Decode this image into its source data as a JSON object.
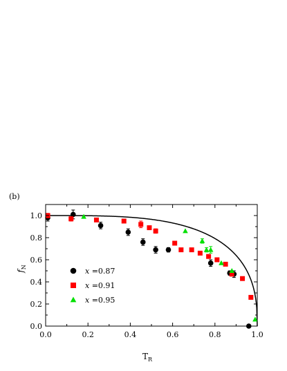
{
  "chart_data": {
    "type": "scatter",
    "panel_label": "(b)",
    "xlabel": "T",
    "xlabel_sub": "R",
    "ylabel": "f",
    "ylabel_sub": "N",
    "xlim": [
      0,
      1
    ],
    "ylim": [
      0,
      1.1
    ],
    "x_ticks": [
      {
        "value": 0,
        "label": "0.0"
      },
      {
        "value": 0.2,
        "label": "0.2"
      },
      {
        "value": 0.4,
        "label": "0.4"
      },
      {
        "value": 0.6,
        "label": "0.6"
      },
      {
        "value": 0.8,
        "label": "0.8"
      },
      {
        "value": 1.0,
        "label": "1.0"
      }
    ],
    "y_ticks": [
      {
        "value": 0,
        "label": "0.0"
      },
      {
        "value": 0.2,
        "label": "0.2"
      },
      {
        "value": 0.4,
        "label": "0.4"
      },
      {
        "value": 0.6,
        "label": "0.6"
      },
      {
        "value": 0.8,
        "label": "0.8"
      },
      {
        "value": 1.0,
        "label": "1.0"
      }
    ],
    "grid": false,
    "legend_position": "lower-left",
    "series": [
      {
        "name": "x =0.87",
        "legend_var": "x",
        "legend_value": " =0.87",
        "marker": "circle",
        "color": "#000000",
        "points": [
          {
            "x": 0.01,
            "y": 0.98,
            "err": 0.03
          },
          {
            "x": 0.13,
            "y": 1.01,
            "err": 0.04
          },
          {
            "x": 0.26,
            "y": 0.91,
            "err": 0.03
          },
          {
            "x": 0.39,
            "y": 0.85,
            "err": 0.03
          },
          {
            "x": 0.46,
            "y": 0.76,
            "err": 0.03
          },
          {
            "x": 0.52,
            "y": 0.69,
            "err": 0.03
          },
          {
            "x": 0.58,
            "y": 0.69,
            "err": 0.02
          },
          {
            "x": 0.78,
            "y": 0.57,
            "err": 0.03
          },
          {
            "x": 0.87,
            "y": 0.48,
            "err": 0.02
          },
          {
            "x": 0.89,
            "y": 0.47,
            "err": 0.03
          },
          {
            "x": 0.96,
            "y": 0.0,
            "err": 0.01
          }
        ]
      },
      {
        "name": "x =0.91",
        "legend_var": "x",
        "legend_value": " =0.91",
        "marker": "square",
        "color": "#ff0000",
        "points": [
          {
            "x": 0.01,
            "y": 1.0,
            "err": 0.02
          },
          {
            "x": 0.12,
            "y": 0.97,
            "err": 0.02
          },
          {
            "x": 0.24,
            "y": 0.96,
            "err": 0.0
          },
          {
            "x": 0.37,
            "y": 0.95,
            "err": 0.0
          },
          {
            "x": 0.45,
            "y": 0.92,
            "err": 0.03
          },
          {
            "x": 0.49,
            "y": 0.89,
            "err": 0.0
          },
          {
            "x": 0.52,
            "y": 0.86,
            "err": 0.02
          },
          {
            "x": 0.61,
            "y": 0.75,
            "err": 0.0
          },
          {
            "x": 0.64,
            "y": 0.69,
            "err": 0.0
          },
          {
            "x": 0.69,
            "y": 0.69,
            "err": 0.0
          },
          {
            "x": 0.73,
            "y": 0.66,
            "err": 0.0
          },
          {
            "x": 0.77,
            "y": 0.63,
            "err": 0.0
          },
          {
            "x": 0.81,
            "y": 0.6,
            "err": 0.0
          },
          {
            "x": 0.85,
            "y": 0.56,
            "err": 0.0
          },
          {
            "x": 0.88,
            "y": 0.47,
            "err": 0.0
          },
          {
            "x": 0.93,
            "y": 0.43,
            "err": 0.0
          },
          {
            "x": 0.97,
            "y": 0.26,
            "err": 0.0
          }
        ]
      },
      {
        "name": "x =0.95",
        "legend_var": "x",
        "legend_value": " =0.95",
        "marker": "triangle",
        "color": "#00e000",
        "points": [
          {
            "x": 0.18,
            "y": 0.99,
            "err": 0.0
          },
          {
            "x": 0.66,
            "y": 0.86,
            "err": 0.0
          },
          {
            "x": 0.74,
            "y": 0.77,
            "err": 0.02
          },
          {
            "x": 0.76,
            "y": 0.69,
            "err": 0.02
          },
          {
            "x": 0.78,
            "y": 0.69,
            "err": 0.03
          },
          {
            "x": 0.83,
            "y": 0.57,
            "err": 0.0
          },
          {
            "x": 0.88,
            "y": 0.5,
            "err": 0.0
          },
          {
            "x": 0.99,
            "y": 0.06,
            "err": 0.0
          }
        ]
      }
    ],
    "fit_curve": {
      "color": "#000000",
      "formula": "y = (1 - x^3.5)^0.38"
    }
  }
}
